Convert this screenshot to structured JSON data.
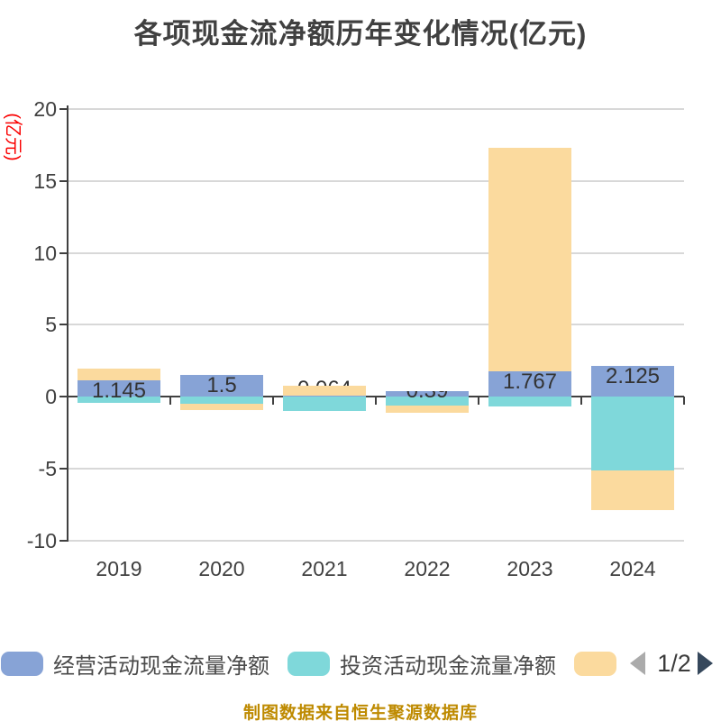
{
  "title": "各项现金流净额历年变化情况(亿元)",
  "y_axis": {
    "unit_label": "(亿元)",
    "ticks": [
      20,
      15,
      10,
      5,
      0,
      -5,
      -10
    ],
    "min": -10,
    "max": 20
  },
  "chart_data": {
    "type": "bar",
    "title": "各项现金流净额历年变化情况(亿元)",
    "ylabel": "(亿元)",
    "ylim": [
      -10,
      20
    ],
    "grid": true,
    "legend_position": "bottom",
    "bar_mode": "overlaid",
    "categories": [
      "2019",
      "2020",
      "2021",
      "2022",
      "2023",
      "2024"
    ],
    "series": [
      {
        "name": "经营活动现金流量净额",
        "color": "#87a3d6",
        "values": [
          1.145,
          1.5,
          0.064,
          0.39,
          1.767,
          2.125
        ],
        "labels": [
          "1.145",
          "1.5",
          "0.064",
          "0.39",
          "1.767",
          "2.125"
        ],
        "label_visibility": [
          "visible",
          "visible",
          "behind",
          "clipped",
          "visible",
          "visible"
        ]
      },
      {
        "name": "投资活动现金流量净额",
        "color": "#7fd8da",
        "values": [
          -0.45,
          -0.48,
          -1.0,
          -0.63,
          -0.7,
          -5.12
        ]
      },
      {
        "name": "",
        "color": "#fbda9e",
        "values": [
          1.95,
          -0.94,
          0.78,
          -1.15,
          17.3,
          -7.88
        ]
      }
    ]
  },
  "legend": {
    "items": [
      {
        "label": "经营活动现金流量净额",
        "color": "#87a3d6"
      },
      {
        "label": "投资活动现金流量净额",
        "color": "#7fd8da"
      },
      {
        "label": "",
        "color": "#fbda9e"
      }
    ],
    "pagination": {
      "current": "1/2"
    }
  },
  "caption": "制图数据来自恒生聚源数据库",
  "colors": {
    "axis": "#404040",
    "grid": "#d8d8d8",
    "title_text": "#404040",
    "bar_label_text": "#333333",
    "y_unit_label": "#fa0000",
    "caption": "#be8a00",
    "pager_prev": "#ababab",
    "pager_next": "#36485c",
    "background": "#ffffff"
  }
}
